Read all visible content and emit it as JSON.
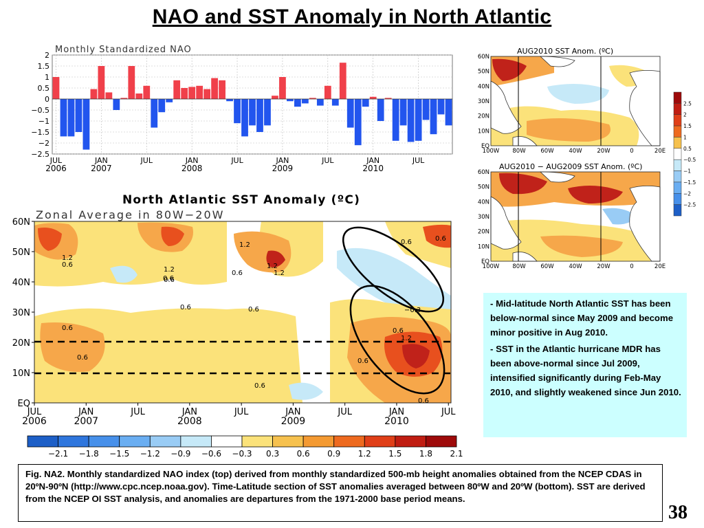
{
  "slide": {
    "title": "NAO and SST Anomaly in North Atlantic",
    "page_number": "38",
    "bullets": [
      "Mid-latitude North Atlantic SST has been below-normal since May 2009 and become minor positive in Aug 2010.",
      "SST in the Atlantic hurricane MDR has been above-normal since Jul 2009, intensified significantly during Feb-May 2010, and slightly weakened since Jun 2010."
    ],
    "caption": "Fig. NA2. Monthly standardized NAO index (top) derived from monthly standardized 500-mb height anomalies obtained from the NCEP CDAS in 20ºN-90ºN (http://www.cpc.ncep.noaa.gov).  Time-Latitude section of SST anomalies averaged between 80ºW and 20ºW (bottom). SST are derived from the NCEP OI SST analysis, and anomalies are departures from the 1971-2000 base period means."
  },
  "chart_data": [
    {
      "type": "bar",
      "title": "Monthly Standardized NAO",
      "ylim": [
        -2.5,
        2
      ],
      "yticks": [
        "2",
        "1.5",
        "1",
        "0.5",
        "0",
        "−0.5",
        "−1",
        "−1.5",
        "−2",
        "−2.5"
      ],
      "xtick_labels": [
        {
          "top": "JUL",
          "bottom": "2006"
        },
        {
          "top": "JAN",
          "bottom": "2007"
        },
        {
          "top": "JUL",
          "bottom": ""
        },
        {
          "top": "JAN",
          "bottom": "2008"
        },
        {
          "top": "JUL",
          "bottom": ""
        },
        {
          "top": "JAN",
          "bottom": "2009"
        },
        {
          "top": "JUL",
          "bottom": ""
        },
        {
          "top": "JAN",
          "bottom": "2010"
        },
        {
          "top": "JUL",
          "bottom": ""
        }
      ],
      "x_start": "Jul 2006",
      "positive_color": "#f0404a",
      "negative_color": "#2255ee",
      "values": [
        1.0,
        -1.7,
        -1.7,
        -1.5,
        -2.3,
        0.45,
        1.5,
        0.3,
        -0.5,
        0.05,
        1.5,
        0.25,
        0.6,
        -1.3,
        -0.6,
        -0.15,
        0.85,
        0.5,
        0.55,
        0.6,
        0.45,
        0.95,
        0.85,
        -0.1,
        -1.1,
        -1.7,
        -1.2,
        -1.5,
        -1.2,
        0.15,
        1.0,
        -0.1,
        -0.35,
        -0.2,
        0.05,
        -0.3,
        0.6,
        -0.3,
        1.65,
        -1.3,
        -2.1,
        -0.35,
        0.1,
        -1.0,
        0.05,
        -1.9,
        -1.2,
        -1.95,
        -1.9,
        -0.95,
        -1.6,
        -0.7,
        -1.2
      ]
    },
    {
      "type": "heatmap",
      "title": "North Atlantic SST Anomaly (ºC)",
      "subtitle": "Zonal Average in 80W−20W",
      "y_labels": [
        "60N",
        "50N",
        "40N",
        "30N",
        "20N",
        "10N",
        "EQ"
      ],
      "x_labels": [
        {
          "top": "JUL",
          "bottom": "2006"
        },
        {
          "top": "JAN",
          "bottom": "2007"
        },
        {
          "top": "JUL",
          "bottom": ""
        },
        {
          "top": "JAN",
          "bottom": "2008"
        },
        {
          "top": "JUL",
          "bottom": ""
        },
        {
          "top": "JAN",
          "bottom": "2009"
        },
        {
          "top": "JUL",
          "bottom": ""
        },
        {
          "top": "JAN",
          "bottom": "2010"
        },
        {
          "top": "JUL",
          "bottom": ""
        }
      ],
      "contour_labels": [
        "1.2",
        "0.6",
        "0.6",
        "1.2",
        "0.6",
        "1.2",
        "0.6",
        "1.2",
        "0.6",
        "0.6",
        "0.6",
        "0.6",
        "0.6",
        "0.6",
        "0.6",
        "−0.3",
        "0.6",
        "1.2",
        "0.6",
        "0.6",
        "1.2"
      ],
      "regions": [
        {
          "name": "mid-latitude",
          "color": "#fbe27a"
        },
        {
          "name": "tropical-mdr",
          "color": "#f6a74a"
        }
      ]
    },
    {
      "type": "heatmap",
      "title": "AUG2010 SST Anom. (ºC)",
      "y_labels": [
        "60N",
        "50N",
        "40N",
        "30N",
        "20N",
        "10N",
        "EQ"
      ],
      "x_labels": [
        "100W",
        "80W",
        "60W",
        "40W",
        "20W",
        "0",
        "20E"
      ]
    },
    {
      "type": "heatmap",
      "title": "AUG2010 − AUG2009 SST Anom. (ºC)",
      "y_labels": [
        "60N",
        "50N",
        "40N",
        "30N",
        "20N",
        "10N",
        "EQ"
      ],
      "x_labels": [
        "100W",
        "80W",
        "60W",
        "40W",
        "20W",
        "0",
        "20E"
      ]
    }
  ],
  "colorbar_horizontal": {
    "labels": [
      "−2.1",
      "−1.8",
      "−1.5",
      "−1.2",
      "−0.9",
      "−0.6",
      "−0.3",
      "0.3",
      "0.6",
      "0.9",
      "1.2",
      "1.5",
      "1.8",
      "2.1"
    ],
    "colors": [
      "#1d5fc7",
      "#2f76dd",
      "#4790ea",
      "#6aaef2",
      "#99ccf5",
      "#c6e9f8",
      "#ffffff",
      "#fbe27a",
      "#f6c14e",
      "#f49a32",
      "#ee6a1f",
      "#e03f18",
      "#c01d12",
      "#9e0a0a"
    ]
  },
  "colorbar_vertical": {
    "labels": [
      "2.5",
      "2",
      "1.5",
      "1",
      "0.5",
      "−0.5",
      "−1",
      "−1.5",
      "−2",
      "−2.5"
    ],
    "colors": [
      "#9e0a0a",
      "#c01d12",
      "#e03f18",
      "#ee6a1f",
      "#f6c14e",
      "#ffffff",
      "#c6e9f8",
      "#99ccf5",
      "#6aaef2",
      "#4790ea",
      "#1d5fc7"
    ]
  }
}
